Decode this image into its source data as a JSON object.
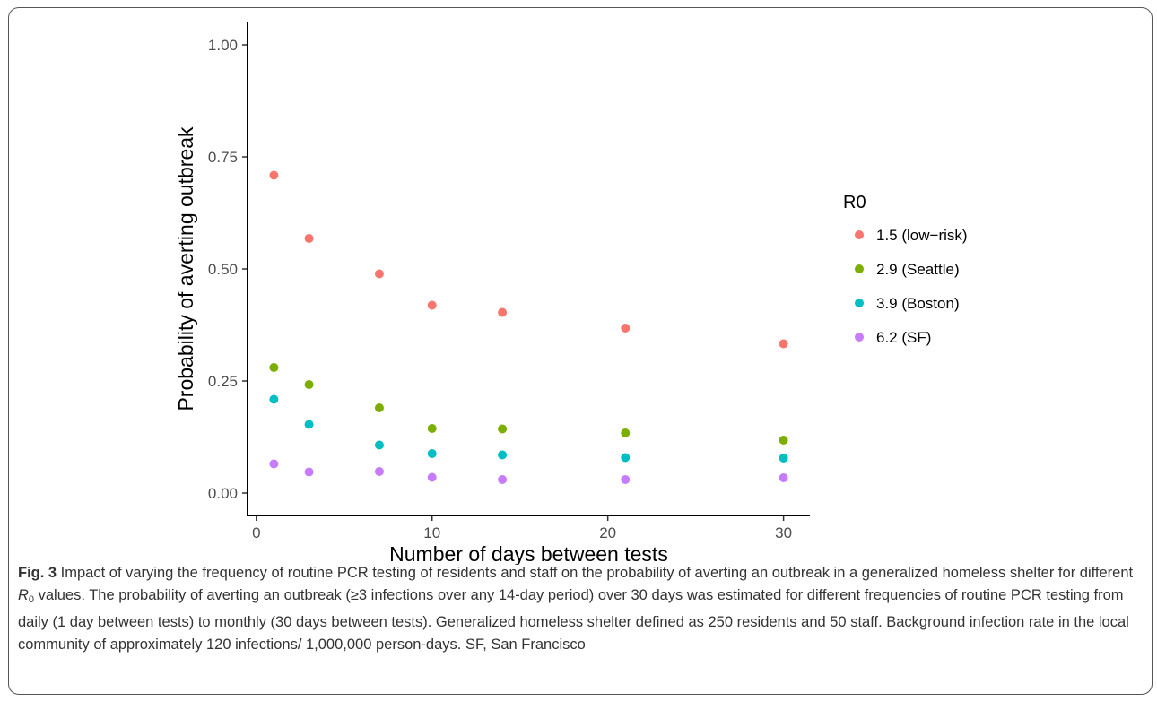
{
  "figure": {
    "label": "Fig. 3",
    "caption_before_symbol": " Impact of varying the frequency of routine PCR testing of residents and staff on the probability of averting an outbreak in a generalized homeless shelter for different ",
    "symbol_main": "R",
    "symbol_sub": "0",
    "caption_after_symbol": " values. The probability of averting an outbreak (≥3 infections over any 14-day period) over 30 days was estimated for different frequencies of routine PCR testing from daily (1 day between tests) to monthly (30 days between tests). Generalized homeless shelter defined as 250 residents and 50 staff. Background infection rate in the local community of approximately 120 infections/ 1,000,000 person-days. SF, San Francisco"
  },
  "chart_data": {
    "type": "scatter",
    "title": "",
    "xlabel": "Number of days between tests",
    "ylabel": "Probability of averting outbreak",
    "xlim": [
      -0.5,
      31.5
    ],
    "ylim": [
      -0.05,
      1.05
    ],
    "x_ticks": [
      0,
      10,
      20,
      30
    ],
    "x_tick_labels": [
      "0",
      "10",
      "20",
      "30"
    ],
    "y_ticks": [
      0,
      0.25,
      0.5,
      0.75,
      1.0
    ],
    "y_tick_labels": [
      "0.00",
      "0.25",
      "0.50",
      "0.75",
      "1.00"
    ],
    "grid": false,
    "legend": {
      "title": "R0",
      "position": "right"
    },
    "x": [
      1,
      3,
      7,
      10,
      14,
      21,
      30
    ],
    "series": [
      {
        "name": "1.5 (low−risk)",
        "color": "#F8766D",
        "values": [
          0.709,
          0.568,
          0.489,
          0.419,
          0.403,
          0.368,
          0.333
        ]
      },
      {
        "name": "2.9 (Seattle)",
        "color": "#7CAE00",
        "values": [
          0.28,
          0.242,
          0.19,
          0.144,
          0.143,
          0.134,
          0.118
        ]
      },
      {
        "name": "3.9 (Boston)",
        "color": "#00BFC4",
        "values": [
          0.209,
          0.153,
          0.107,
          0.088,
          0.085,
          0.079,
          0.078
        ]
      },
      {
        "name": "6.2 (SF)",
        "color": "#C77CFF",
        "values": [
          0.065,
          0.047,
          0.048,
          0.035,
          0.03,
          0.03,
          0.034
        ]
      }
    ]
  }
}
